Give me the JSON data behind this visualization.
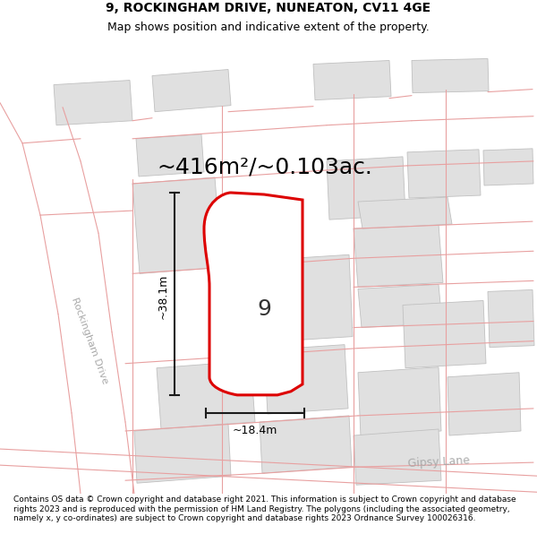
{
  "title_line1": "9, ROCKINGHAM DRIVE, NUNEATON, CV11 4GE",
  "title_line2": "Map shows position and indicative extent of the property.",
  "area_text": "~416m²/~0.103ac.",
  "width_label": "~18.4m",
  "height_label": "~38.1m",
  "number_label": "9",
  "road_label_1": "Rockingham Drive",
  "road_label_2": "Gipsy Lane",
  "footer_text": "Contains OS data © Crown copyright and database right 2021. This information is subject to Crown copyright and database rights 2023 and is reproduced with the permission of HM Land Registry. The polygons (including the associated geometry, namely x, y co-ordinates) are subject to Crown copyright and database rights 2023 Ordnance Survey 100026316.",
  "map_bg_color": "#ffffff",
  "plot_fill_color": "#ffffff",
  "plot_border_color": "#dd0000",
  "road_line_color": "#e8a0a0",
  "building_fill_color": "#e0e0e0",
  "building_edge_color": "#c0c0c0",
  "dim_line_color": "#1a1a1a",
  "title_fontsize": 10,
  "subtitle_fontsize": 9,
  "area_fontsize": 18,
  "number_fontsize": 18,
  "dim_fontsize": 9,
  "road_label_fontsize": 9,
  "footer_fontsize": 6.5
}
